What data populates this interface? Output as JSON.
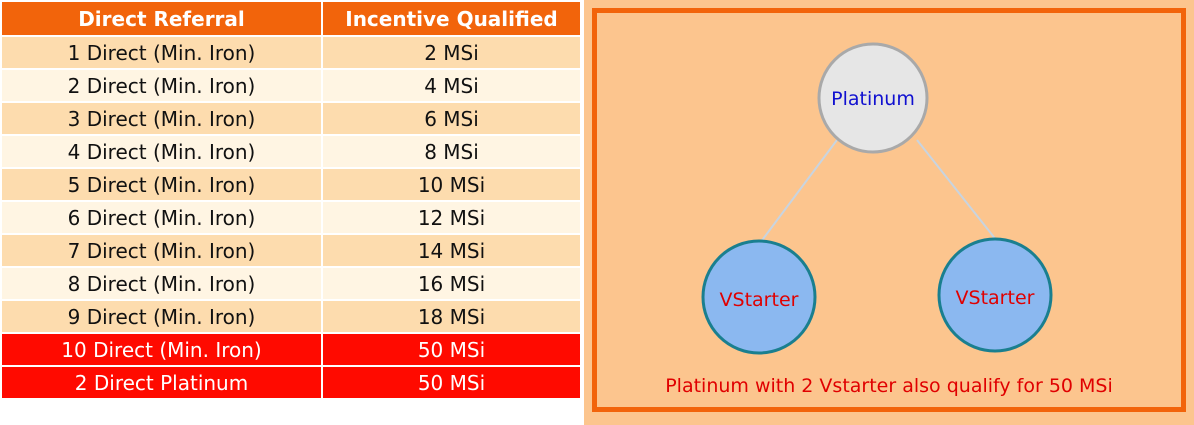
{
  "table": {
    "headers": [
      "Direct Referral",
      "Incentive Qualified"
    ],
    "rows": [
      {
        "referral": "1 Direct (Min. Iron)",
        "incentive": "2 MSi"
      },
      {
        "referral": "2 Direct (Min. Iron)",
        "incentive": "4 MSi"
      },
      {
        "referral": "3 Direct (Min. Iron)",
        "incentive": "6 MSi"
      },
      {
        "referral": "4 Direct (Min. Iron)",
        "incentive": "8 MSi"
      },
      {
        "referral": "5 Direct (Min. Iron)",
        "incentive": "10 MSi"
      },
      {
        "referral": "6 Direct (Min. Iron)",
        "incentive": "12 MSi"
      },
      {
        "referral": "7 Direct (Min. Iron)",
        "incentive": "14 MSi"
      },
      {
        "referral": "8 Direct (Min. Iron)",
        "incentive": "16 MSi"
      },
      {
        "referral": "9 Direct (Min. Iron)",
        "incentive": "18 MSi"
      },
      {
        "referral": "10 Direct (Min. Iron)",
        "incentive": "50 MSi"
      },
      {
        "referral": "2 Direct Platinum",
        "incentive": "50 MSi"
      }
    ],
    "highlighted_rows": [
      9,
      10
    ]
  },
  "diagram": {
    "root": {
      "label": "Platinum"
    },
    "children": [
      {
        "label": "VStarter"
      },
      {
        "label": "VStarter"
      }
    ],
    "caption": "Platinum with 2 Vstarter also qualify for 50 MSi"
  },
  "colors": {
    "header_bg": "#f2640b",
    "row_odd": "#fddcae",
    "row_even": "#fff5e3",
    "row_highlight": "#ff0a00",
    "panel_bg": "#fcc58e",
    "root_fill": "#e6e6e6",
    "root_text": "#1010d0",
    "child_fill": "#8bb8f0",
    "child_stroke": "#1a7f8f",
    "child_text": "#e00000"
  }
}
